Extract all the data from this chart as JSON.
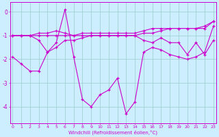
{
  "xlabel": "Windchill (Refroidissement éolien,°C)",
  "hours": [
    0,
    1,
    2,
    3,
    4,
    5,
    6,
    7,
    8,
    9,
    10,
    11,
    12,
    13,
    14,
    15,
    16,
    17,
    18,
    19,
    20,
    21,
    22,
    23
  ],
  "line1": [
    -1.9,
    -2.2,
    -2.5,
    -2.5,
    -1.7,
    -1.3,
    0.1,
    -1.9,
    -3.7,
    -4.0,
    -3.5,
    -3.3,
    -2.8,
    -4.3,
    -3.8,
    -1.7,
    -1.5,
    -1.6,
    -1.8,
    -1.9,
    -2.0,
    -1.9,
    -1.7,
    -0.6
  ],
  "line2": [
    -1.0,
    -1.0,
    -1.0,
    -1.2,
    -1.7,
    -1.5,
    -1.2,
    -1.2,
    -1.1,
    -1.0,
    -1.0,
    -1.0,
    -1.0,
    -1.0,
    -1.0,
    -1.2,
    -1.3,
    -1.1,
    -1.3,
    -1.3,
    -1.8,
    -1.3,
    -1.8,
    -1.2
  ],
  "line3": [
    -1.0,
    -1.0,
    -1.0,
    -1.0,
    -1.0,
    -1.0,
    -1.0,
    -1.0,
    -1.0,
    -1.0,
    -1.0,
    -1.0,
    -1.0,
    -1.0,
    -1.0,
    -0.9,
    -0.9,
    -0.8,
    -0.7,
    -0.7,
    -0.7,
    -0.7,
    -0.7,
    -0.4
  ],
  "line4": [
    -1.0,
    -1.0,
    -1.0,
    -0.9,
    -0.9,
    -0.8,
    -0.9,
    -1.0,
    -0.9,
    -0.9,
    -0.9,
    -0.9,
    -0.9,
    -0.9,
    -0.9,
    -0.8,
    -0.7,
    -0.7,
    -0.7,
    -0.7,
    -0.7,
    -0.7,
    -0.6,
    -0.4
  ],
  "bg_color": "#cceeff",
  "line_color": "#cc00cc",
  "grid_color": "#99cccc",
  "ylim": [
    -4.7,
    0.4
  ],
  "yticks": [
    0,
    -1,
    -2,
    -3,
    -4
  ],
  "xlim": [
    -0.3,
    23.3
  ]
}
